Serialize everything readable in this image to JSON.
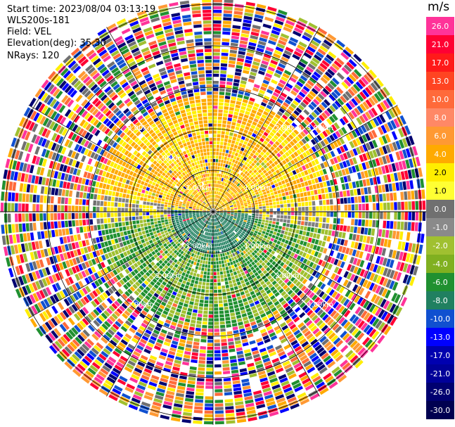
{
  "info": {
    "start_time": "Start time: 2023/08/04 03:13:19",
    "instrument": "WLS200s-181",
    "field": "Field: VEL",
    "elevation": "Elevation(deg): 35.30",
    "nrays": "NRays: 120"
  },
  "colorbar": {
    "unit": "m/s",
    "ticks": [
      "26.0",
      "21.0",
      "17.0",
      "13.0",
      "10.0",
      "8.0",
      "6.0",
      "4.0",
      "2.0",
      "1.0",
      "0.0",
      "-1.0",
      "-2.0",
      "-4.0",
      "-6.0",
      "-8.0",
      "-10.0",
      "-13.0",
      "-17.0",
      "-21.0",
      "-26.0",
      "-30.0"
    ],
    "colors": [
      "#ff3399",
      "#ff0033",
      "#ff1a1a",
      "#ff4422",
      "#ff6a3a",
      "#ff8866",
      "#ff9933",
      "#ffaa00",
      "#ffee00",
      "#ffff33",
      "#707070",
      "#8a8a8a",
      "#a0c030",
      "#80b020",
      "#209030",
      "#208060",
      "#1050d0",
      "#0000ff",
      "#0000b0",
      "#000099",
      "#000070",
      "#000050"
    ]
  },
  "range_rings": [
    "1.00km",
    "2.00km",
    "3.00km"
  ]
}
